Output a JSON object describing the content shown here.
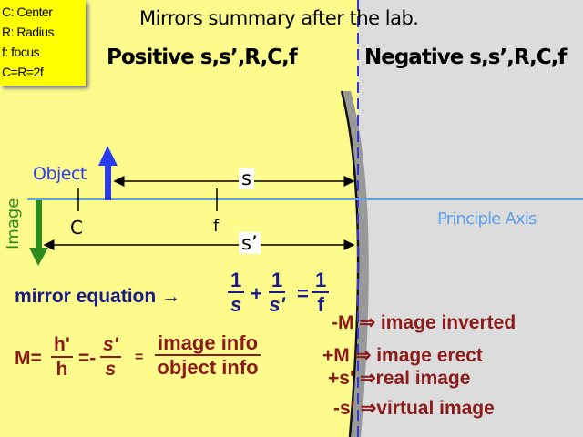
{
  "legend": {
    "lines": [
      "C: Center",
      "R: Radius",
      "f: focus",
      "C=R=2f"
    ]
  },
  "title": "Mirrors summary after the lab.",
  "positive_header": "Positive s,s’,R,C,f",
  "negative_header": "Negative s,s’,R,C,f",
  "diagram": {
    "object_label": "Object",
    "image_label": "Image",
    "c_label": "C",
    "f_label": "f",
    "s_label": "s",
    "s_prime_label": "s’",
    "axis_label": "Principle Axis"
  },
  "colors": {
    "left_bg": "#fdfb8c",
    "right_bg": "#dcdcdc",
    "object_arrow": "#2a3cf0",
    "image_arrow": "#2e8b1e",
    "axis": "#5fa0e8",
    "navy": "#1a1a8c",
    "dark_red": "#8b1a1a"
  },
  "mirror_equation": {
    "label": "mirror equation →",
    "t1_num": "1",
    "t1_den": "s",
    "plus": "+",
    "t2_num": "1",
    "t2_den": "s'",
    "eq": "=",
    "t3_num": "1",
    "t3_den": "f"
  },
  "magnification": {
    "m": "M=",
    "f1_num": "h'",
    "f1_den": "h",
    "eq_neg": "=-",
    "f2_num": "s'",
    "f2_den": "s",
    "eq": "=",
    "f3_num": "image info",
    "f3_den": "object info"
  },
  "rules": [
    {
      "sign": "-M",
      "text": "⇒ image inverted"
    },
    {
      "sign": "+M",
      "text": "⇒ image erect"
    },
    {
      "sign": "+s'",
      "text": "⇒real image"
    },
    {
      "sign": "-s'",
      "text": "⇒virtual image"
    }
  ]
}
